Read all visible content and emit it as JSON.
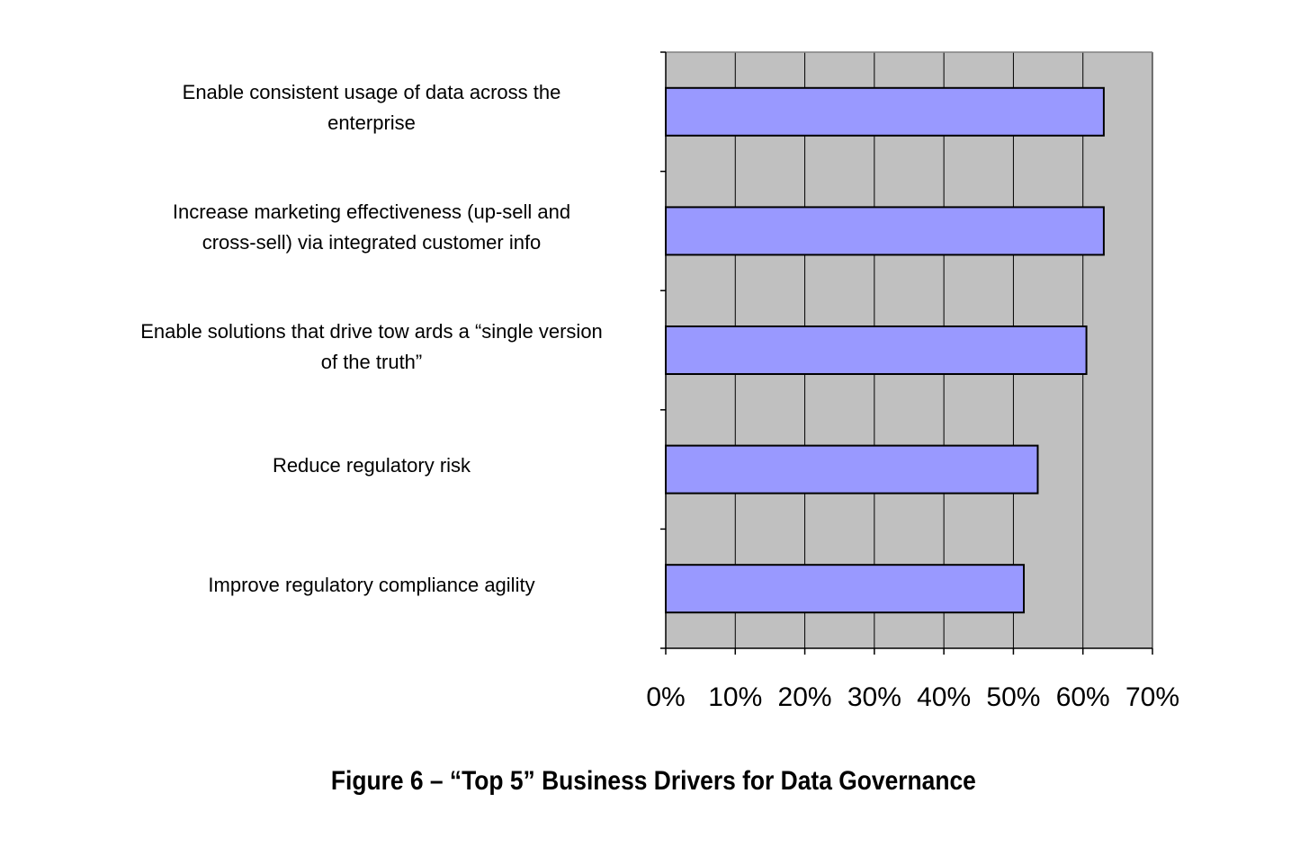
{
  "caption": "Figure 6 – “Top 5” Business Drivers for Data Governance",
  "chart_data": {
    "type": "bar",
    "orientation": "horizontal",
    "categories": [
      [
        "Enable consistent usage of data across the",
        "enterprise"
      ],
      [
        "Increase marketing effectiveness (up-sell and",
        "cross-sell) via integrated customer info"
      ],
      [
        "Enable solutions that drive tow ards a “single version",
        "of the truth”"
      ],
      [
        "Reduce regulatory risk"
      ],
      [
        "Improve regulatory compliance agility"
      ]
    ],
    "values": [
      63,
      63,
      60.5,
      53.5,
      51.5
    ],
    "xlim": [
      0,
      70
    ],
    "xticks": [
      0,
      10,
      20,
      30,
      40,
      50,
      60,
      70
    ],
    "xtick_labels": [
      "0%",
      "10%",
      "20%",
      "30%",
      "40%",
      "50%",
      "60%",
      "70%"
    ],
    "grid": true,
    "colors": {
      "bar": "#9999ff",
      "plot_background": "#c0c0c0",
      "gridline": "#000000"
    }
  }
}
